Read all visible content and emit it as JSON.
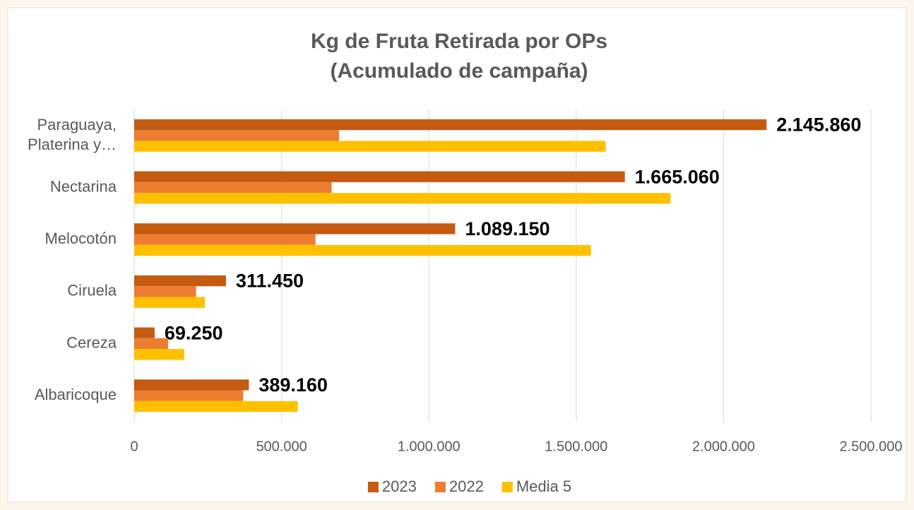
{
  "chart_data": {
    "type": "bar",
    "orientation": "horizontal",
    "title": "Kg de Fruta Retirada por OPs",
    "subtitle": "(Acumulado de campaña)",
    "categories": [
      "Paraguaya,\nPlaterina y…",
      "Nectarina",
      "Melocotón",
      "Ciruela",
      "Cereza",
      "Albaricoque"
    ],
    "series": [
      {
        "name": "2023",
        "color": "#c55a11",
        "values": [
          2145860,
          1665060,
          1089150,
          311450,
          69250,
          389160
        ],
        "value_labels": [
          "2.145.860",
          "1.665.060",
          "1.089.150",
          "311.450",
          "69.250",
          "389.160"
        ]
      },
      {
        "name": "2022",
        "color": "#ed7d31",
        "values": [
          695000,
          670000,
          615000,
          210000,
          115000,
          370000
        ]
      },
      {
        "name": "Media 5",
        "color": "#ffc000",
        "values": [
          1600000,
          1820000,
          1550000,
          240000,
          170000,
          555000
        ]
      }
    ],
    "xlim": [
      0,
      2500000
    ],
    "xticks": [
      0,
      {
        "value": 500000,
        "label": "500.000"
      },
      {
        "value": 1000000,
        "label": "1.000.000"
      },
      {
        "value": 1500000,
        "label": "1.500.000"
      },
      {
        "value": 2000000,
        "label": "2.000.000"
      },
      {
        "value": 2500000,
        "label": "2.500.000"
      }
    ],
    "grid": true,
    "legend": "bottom"
  }
}
